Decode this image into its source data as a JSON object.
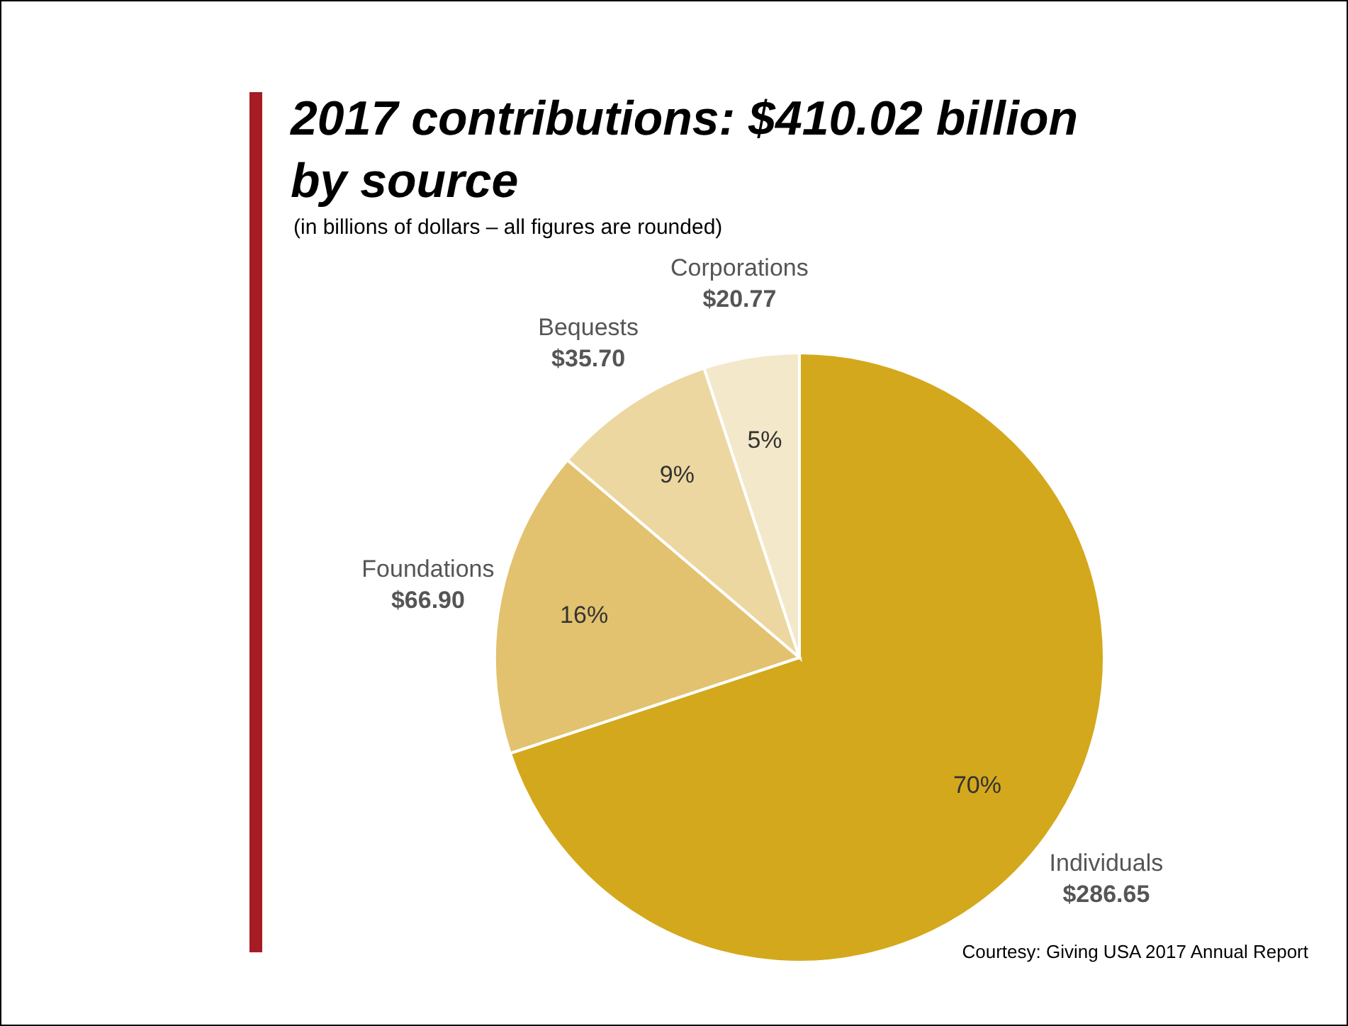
{
  "chart_data": {
    "type": "pie",
    "title": "2017 contributions: $410.02 billion by source",
    "subtitle": "(in billions of dollars – all figures are rounded)",
    "categories": [
      "Individuals",
      "Foundations",
      "Bequests",
      "Corporations"
    ],
    "values": [
      286.65,
      66.9,
      35.7,
      20.77
    ],
    "value_labels": [
      "$286.65",
      "$66.90",
      "$35.70",
      "$20.77"
    ],
    "colors": [
      "#d4a81c",
      "#e2c26e",
      "#ecd7a0",
      "#f4e8ca"
    ],
    "annotations": [
      {
        "text": "70%",
        "x": "Individuals"
      },
      {
        "text": "16%",
        "x": "Foundations"
      },
      {
        "text": "9%",
        "x": "Bequests"
      },
      {
        "text": "5%",
        "x": "Corporations"
      },
      "Courtesy: Giving USA 2017 Annual Report"
    ]
  }
}
